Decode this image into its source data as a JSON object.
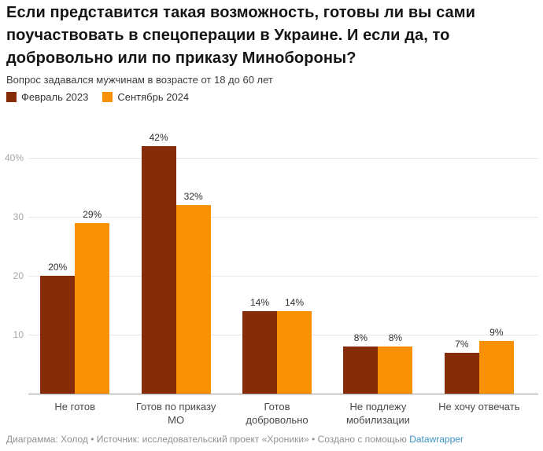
{
  "chart_data": {
    "type": "bar",
    "title": "Если представится такая возможность, готовы ли вы сами поучаствовать в спецоперации в Украине. И если да, то добровольно или по приказу Минобороны?",
    "subtitle": "Вопрос задавался мужчинам в возрасте от 18 до 60 лет",
    "categories": [
      "Не готов",
      "Готов по приказу МО",
      "Готов добровольно",
      "Не подлежу мобилизации",
      "Не хочу отвечать"
    ],
    "series": [
      {
        "name": "Февраль 2023",
        "color": "#872c08",
        "values": [
          20,
          42,
          14,
          8,
          7
        ]
      },
      {
        "name": "Сентябрь 2024",
        "color": "#f99106",
        "values": [
          29,
          32,
          14,
          8,
          9
        ]
      }
    ],
    "value_suffix": "%",
    "y_ticks": [
      10,
      20,
      30,
      40
    ],
    "y_tick_labels": [
      "10",
      "20",
      "30",
      "40%"
    ],
    "ylim": [
      0,
      46.8
    ],
    "grid": true,
    "legend_position": "top"
  },
  "footer": {
    "prefix": "Диаграмма: Холод • Источник: исследовательский проект «Хроники» • Создано с помощью ",
    "link_label": "Datawrapper",
    "link_color": "#3d93c6"
  }
}
